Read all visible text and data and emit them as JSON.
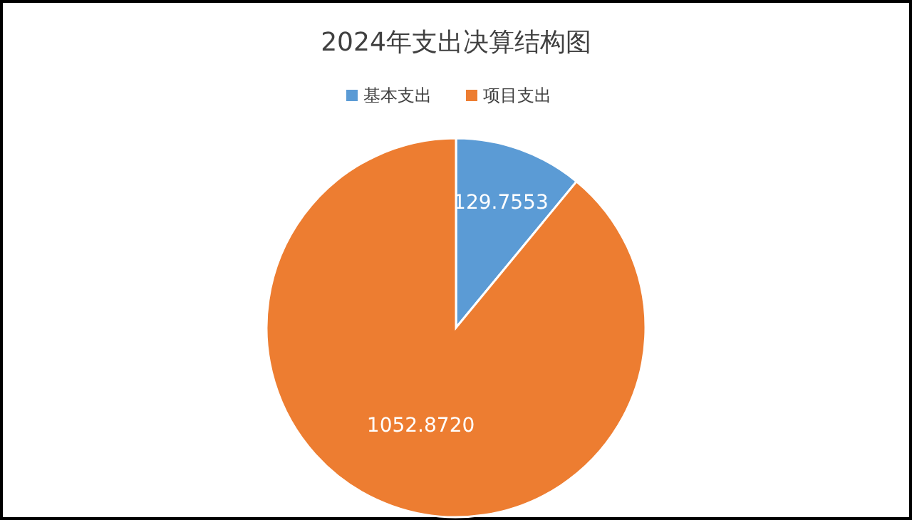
{
  "chart_data": {
    "type": "pie",
    "title": "2024年支出决算结构图",
    "categories": [
      "基本支出",
      "项目支出"
    ],
    "values": [
      129.7553,
      1052.872
    ],
    "value_labels": [
      "129.7553",
      "1052.8720"
    ],
    "colors": [
      "#5b9bd5",
      "#ed7d31"
    ],
    "legend": "top"
  }
}
